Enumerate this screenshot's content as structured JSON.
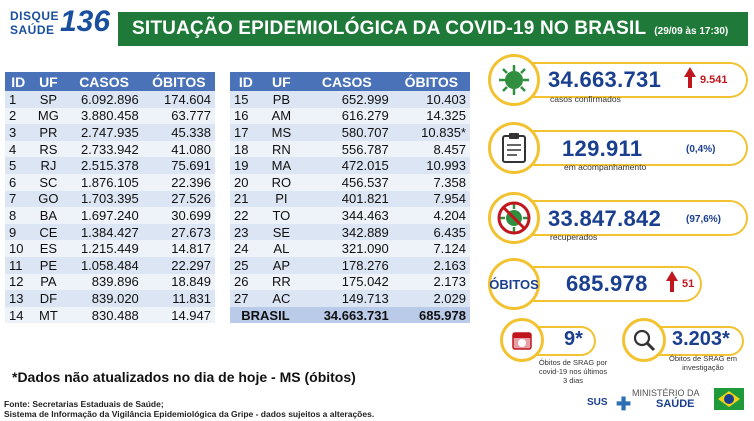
{
  "header": {
    "logo_line1": "DISQUE",
    "logo_line2": "SAÚDE",
    "logo_number": "136",
    "title": "SITUAÇÃO EPIDEMIOLÓGICA DA COVID-19 NO BRASIL",
    "date": "(29/09 às 17:30)"
  },
  "table": {
    "headers": [
      "ID",
      "UF",
      "CASOS",
      "ÓBITOS"
    ],
    "left_rows": [
      [
        "1",
        "SP",
        "6.092.896",
        "174.604"
      ],
      [
        "2",
        "MG",
        "3.880.458",
        "63.777"
      ],
      [
        "3",
        "PR",
        "2.747.935",
        "45.338"
      ],
      [
        "4",
        "RS",
        "2.733.942",
        "41.080"
      ],
      [
        "5",
        "RJ",
        "2.515.378",
        "75.691"
      ],
      [
        "6",
        "SC",
        "1.876.105",
        "22.396"
      ],
      [
        "7",
        "GO",
        "1.703.395",
        "27.526"
      ],
      [
        "8",
        "BA",
        "1.697.240",
        "30.699"
      ],
      [
        "9",
        "CE",
        "1.384.427",
        "27.673"
      ],
      [
        "10",
        "ES",
        "1.215.449",
        "14.817"
      ],
      [
        "11",
        "PE",
        "1.058.484",
        "22.297"
      ],
      [
        "12",
        "PA",
        "839.896",
        "18.849"
      ],
      [
        "13",
        "DF",
        "839.020",
        "11.831"
      ],
      [
        "14",
        "MT",
        "830.488",
        "14.947"
      ]
    ],
    "right_rows": [
      [
        "15",
        "PB",
        "652.999",
        "10.403"
      ],
      [
        "16",
        "AM",
        "616.279",
        "14.325"
      ],
      [
        "17",
        "MS",
        "580.707",
        "10.835*"
      ],
      [
        "18",
        "RN",
        "556.787",
        "8.457"
      ],
      [
        "19",
        "MA",
        "472.015",
        "10.993"
      ],
      [
        "20",
        "RO",
        "456.537",
        "7.358"
      ],
      [
        "21",
        "PI",
        "401.821",
        "7.954"
      ],
      [
        "22",
        "TO",
        "344.463",
        "4.204"
      ],
      [
        "23",
        "SE",
        "342.889",
        "6.435"
      ],
      [
        "24",
        "AL",
        "321.090",
        "7.124"
      ],
      [
        "25",
        "AP",
        "178.276",
        "2.163"
      ],
      [
        "26",
        "RR",
        "175.042",
        "2.173"
      ],
      [
        "27",
        "AC",
        "149.713",
        "2.029"
      ]
    ],
    "total": {
      "label": "BRASIL",
      "casos": "34.663.731",
      "obitos": "685.978"
    }
  },
  "note": "*Dados não atualizados no dia de hoje - MS (óbitos)",
  "source_line1": "Fonte: Secretarias Estaduais de Saúde;",
  "source_line2": "Sistema de Informação da Vigilância Epidemiológica da Gripe - dados sujeitos a alterações.",
  "cards": {
    "confirmados": {
      "value": "34.663.731",
      "delta": "9.541",
      "label": "casos confirmados",
      "icon": "virus-icon"
    },
    "acompanhamento": {
      "value": "129.911",
      "pct": "(0,4%)",
      "label": "em acompanhamento",
      "icon": "clipboard-icon"
    },
    "recuperados": {
      "value": "33.847.842",
      "pct": "(97,6%)",
      "label": "recuperados",
      "icon": "crossed-virus-icon"
    },
    "obitos": {
      "title": "ÓBITOS",
      "value": "685.978",
      "delta": "51"
    },
    "srag_obitos": {
      "value": "9*",
      "label1": "Óbitos de SRAG por",
      "label2": "covid-19 nos últimos",
      "label3": "3 dias",
      "icon": "calendar-icon"
    },
    "srag_invest": {
      "value": "3.203*",
      "label1": "Óbitos de SRAG em",
      "label2": "investigação",
      "icon": "magnifier-icon"
    }
  },
  "footer": {
    "sus": "SUS",
    "ministry1": "MINISTÉRIO DA",
    "ministry2": "SAÚDE"
  }
}
